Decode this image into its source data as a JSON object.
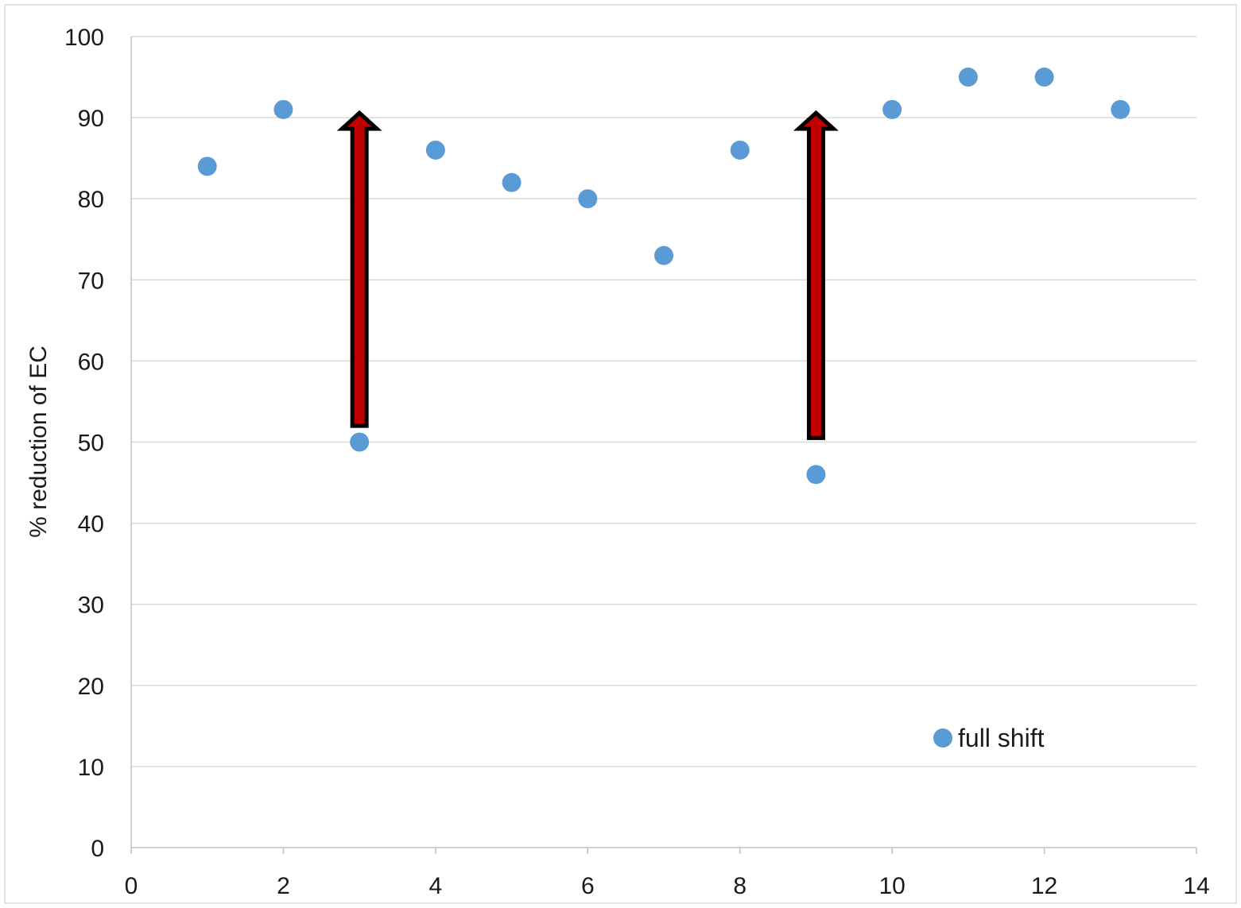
{
  "chart_data": {
    "type": "scatter",
    "title": "",
    "xlabel": "",
    "ylabel": "% reduction of EC",
    "xlim": [
      0,
      14
    ],
    "ylim": [
      0,
      100
    ],
    "x_ticks": [
      0,
      2,
      4,
      6,
      8,
      10,
      12,
      14
    ],
    "y_ticks": [
      0,
      10,
      20,
      30,
      40,
      50,
      60,
      70,
      80,
      90,
      100
    ],
    "grid": "horizontal",
    "legend_position": "bottom-right",
    "series": [
      {
        "name": "full shift",
        "color": "#5B9BD5",
        "x": [
          1,
          2,
          3,
          4,
          5,
          6,
          7,
          8,
          9,
          10,
          11,
          12,
          13
        ],
        "y": [
          84,
          91,
          50,
          86,
          82,
          80,
          73,
          86,
          46,
          91,
          95,
          95,
          91
        ]
      }
    ],
    "annotations": [
      {
        "type": "arrow-up",
        "x": 3,
        "y_from": 52,
        "y_to": 90,
        "color": "#C00000",
        "outline": "#000000"
      },
      {
        "type": "arrow-up",
        "x": 9,
        "y_from": 50.5,
        "y_to": 90,
        "color": "#C00000",
        "outline": "#000000"
      }
    ]
  }
}
